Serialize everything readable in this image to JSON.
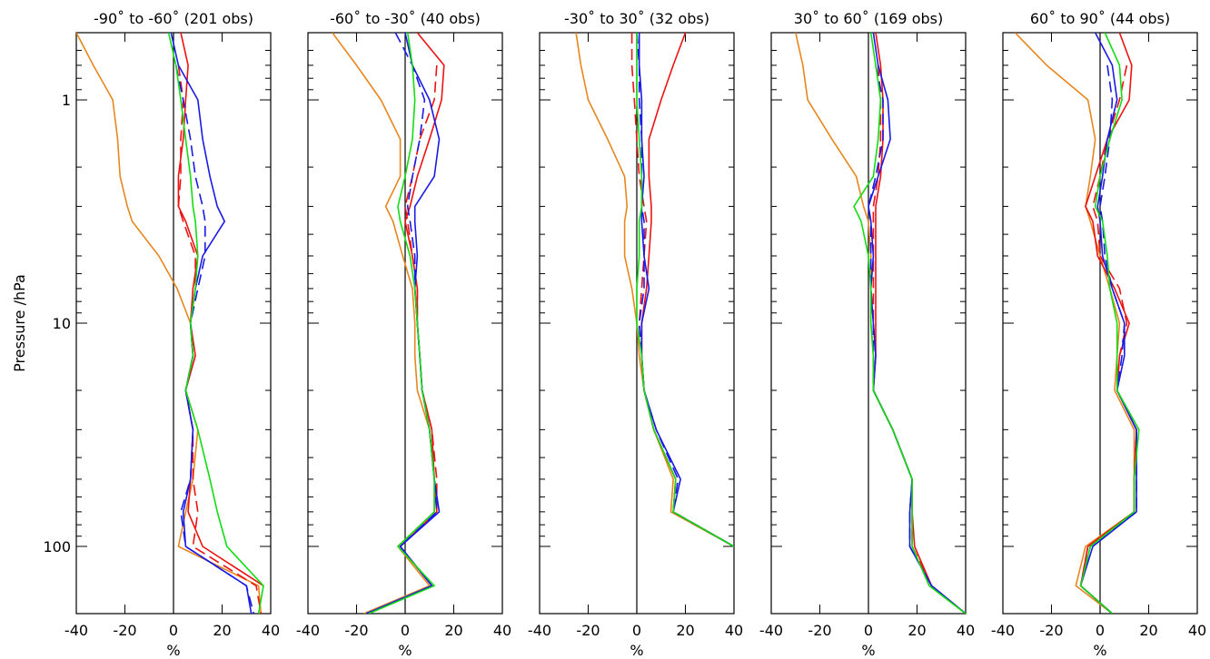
{
  "chart_data": [
    {
      "type": "line",
      "title": "-90˚ to -60˚ (201 obs)",
      "xlabel": "%",
      "ylabel": "Pressure /hPa",
      "xlim": [
        -40,
        40
      ],
      "xticks": [
        -40,
        -20,
        0,
        20,
        40
      ],
      "ylim": [
        200,
        0.5
      ],
      "yticks": [
        1,
        10,
        100
      ],
      "show_ytick_labels": true,
      "yminor": [
        0.6,
        0.7,
        0.8,
        0.9,
        2,
        3,
        4,
        5,
        6,
        7,
        8,
        9,
        20,
        30,
        40,
        50,
        60,
        70,
        80,
        90,
        200
      ],
      "log_y": true,
      "y": [
        0.5,
        0.7,
        1,
        1.5,
        2.2,
        3,
        3.5,
        5,
        7,
        10,
        14,
        20,
        30,
        50,
        70,
        100,
        150,
        200
      ],
      "series": [
        {
          "color": "#e8861e",
          "dashed": false,
          "values": [
            -40,
            -33,
            -25,
            -23,
            -22,
            -19,
            -17,
            -6,
            1.5,
            7,
            8,
            5,
            10,
            8,
            5,
            2,
            35,
            36
          ]
        },
        {
          "color": "#ee1111",
          "dashed": false,
          "values": [
            3,
            6,
            5,
            4,
            2,
            2,
            5,
            10,
            8,
            7,
            9,
            5,
            8,
            7,
            6,
            12,
            37,
            null
          ]
        },
        {
          "color": "#ee1111",
          "dashed": true,
          "values": [
            null,
            2,
            4,
            3,
            3,
            2,
            4,
            9,
            9,
            7,
            8,
            5,
            8,
            8,
            10,
            8,
            34,
            36
          ]
        },
        {
          "color": "#1a1ae6",
          "dashed": false,
          "values": [
            -1,
            2,
            10,
            12,
            15,
            18,
            21,
            12,
            9,
            7,
            8,
            5,
            8,
            7,
            4,
            5,
            30,
            32
          ]
        },
        {
          "color": "#1a1ae6",
          "dashed": true,
          "values": [
            null,
            1,
            4,
            7,
            9,
            12,
            13,
            13,
            10,
            7,
            8,
            5,
            8,
            7,
            3,
            5,
            30,
            33
          ]
        },
        {
          "color": "#11dd11",
          "dashed": false,
          "values": [
            -2,
            1,
            3,
            5,
            7,
            8,
            9,
            10,
            9,
            7,
            8,
            5,
            10,
            15,
            18,
            22,
            37,
            35
          ]
        }
      ]
    },
    {
      "type": "line",
      "title": "-60˚ to -30˚ (40 obs)",
      "xlabel": "%",
      "xlim": [
        -40,
        40
      ],
      "xticks": [
        -40,
        -20,
        0,
        20,
        40
      ],
      "ylim": [
        200,
        0.5
      ],
      "yticks": [
        1,
        10,
        100
      ],
      "show_ytick_labels": false,
      "yminor": [
        0.6,
        0.7,
        0.8,
        0.9,
        2,
        3,
        4,
        5,
        6,
        7,
        8,
        9,
        20,
        30,
        40,
        50,
        60,
        70,
        80,
        90,
        200
      ],
      "log_y": true,
      "y": [
        0.5,
        0.7,
        1,
        1.5,
        2.2,
        3,
        3.5,
        5,
        7,
        10,
        14,
        20,
        30,
        50,
        70,
        100,
        150,
        200
      ],
      "series": [
        {
          "color": "#e8861e",
          "dashed": false,
          "values": [
            -30,
            -20,
            -10,
            -2,
            -2,
            -8,
            -5,
            -1,
            3,
            4,
            4,
            5,
            10,
            12,
            12,
            -3,
            10,
            -17
          ]
        },
        {
          "color": "#ee1111",
          "dashed": false,
          "values": [
            5,
            16,
            15,
            10,
            5,
            2,
            0,
            3,
            5,
            5,
            6,
            7,
            11,
            12,
            13,
            -2,
            11,
            -15
          ]
        },
        {
          "color": "#ee1111",
          "dashed": true,
          "values": [
            null,
            13,
            12,
            6,
            3,
            0,
            1,
            3,
            5,
            5,
            6,
            7,
            11,
            13,
            13,
            -2,
            11,
            -15
          ]
        },
        {
          "color": "#1a1ae6",
          "dashed": false,
          "values": [
            0,
            3,
            10,
            14,
            12,
            4,
            4,
            5,
            4,
            5,
            6,
            7,
            10,
            12,
            14,
            -2,
            11,
            -16
          ]
        },
        {
          "color": "#1a1ae6",
          "dashed": true,
          "values": [
            -4,
            3,
            8,
            6,
            3,
            1,
            2,
            4,
            4,
            5,
            6,
            7,
            10,
            12,
            13,
            -2,
            11,
            -16
          ]
        },
        {
          "color": "#11dd11",
          "dashed": false,
          "values": [
            1,
            3,
            4,
            3,
            0,
            -3,
            -2,
            2,
            4,
            5,
            6,
            7,
            10,
            12,
            12,
            -3,
            12,
            -15
          ]
        }
      ]
    },
    {
      "type": "line",
      "title": "-30˚ to 30˚ (32 obs)",
      "xlabel": "%",
      "xlim": [
        -40,
        40
      ],
      "xticks": [
        -40,
        -20,
        0,
        20,
        40
      ],
      "ylim": [
        200,
        0.5
      ],
      "yticks": [
        1,
        10,
        100
      ],
      "show_ytick_labels": false,
      "yminor": [
        0.6,
        0.7,
        0.8,
        0.9,
        2,
        3,
        4,
        5,
        6,
        7,
        8,
        9,
        20,
        30,
        40,
        50,
        60,
        70,
        80,
        90,
        200
      ],
      "log_y": true,
      "y": [
        0.5,
        0.7,
        1,
        1.5,
        2.2,
        3,
        3.5,
        5,
        7,
        10,
        14,
        20,
        30,
        50,
        70,
        100,
        150,
        200
      ],
      "series": [
        {
          "color": "#e8861e",
          "dashed": false,
          "values": [
            -25,
            -23,
            -20,
            -12,
            -5,
            -4,
            -5,
            -5,
            -2,
            0,
            1,
            3,
            7,
            15,
            14,
            40,
            null,
            null
          ]
        },
        {
          "color": "#ee1111",
          "dashed": false,
          "values": [
            20,
            15,
            10,
            5,
            5,
            6,
            6,
            5,
            4,
            2,
            2,
            3,
            7,
            16,
            15,
            40,
            null,
            null
          ]
        },
        {
          "color": "#ee1111",
          "dashed": true,
          "values": [
            -2,
            -2,
            -1,
            0,
            1,
            3,
            4,
            3,
            2,
            1,
            2,
            3,
            7,
            16,
            15,
            40,
            null,
            null
          ]
        },
        {
          "color": "#1a1ae6",
          "dashed": false,
          "values": [
            1,
            1,
            2,
            2,
            3,
            2,
            2,
            3,
            5,
            2,
            2,
            3,
            8,
            18,
            15,
            40,
            null,
            null
          ]
        },
        {
          "color": "#1a1ae6",
          "dashed": true,
          "values": [
            0,
            1,
            1,
            2,
            2,
            2,
            3,
            3,
            3,
            1,
            2,
            3,
            8,
            17,
            15,
            40,
            null,
            null
          ]
        },
        {
          "color": "#11dd11",
          "dashed": false,
          "values": [
            0,
            0,
            0,
            1,
            2,
            2,
            1,
            1,
            0,
            0,
            2,
            3,
            7,
            16,
            15,
            40,
            null,
            null
          ]
        }
      ]
    },
    {
      "type": "line",
      "title": "30˚ to 60˚ (169 obs)",
      "xlabel": "%",
      "xlim": [
        -40,
        40
      ],
      "xticks": [
        -40,
        -20,
        0,
        20,
        40
      ],
      "ylim": [
        200,
        0.5
      ],
      "yticks": [
        1,
        10,
        100
      ],
      "show_ytick_labels": false,
      "yminor": [
        0.6,
        0.7,
        0.8,
        0.9,
        2,
        3,
        4,
        5,
        6,
        7,
        8,
        9,
        20,
        30,
        40,
        50,
        60,
        70,
        80,
        90,
        200
      ],
      "log_y": true,
      "y": [
        0.5,
        0.7,
        1,
        1.5,
        2.2,
        3,
        3.5,
        5,
        7,
        10,
        14,
        20,
        30,
        50,
        70,
        100,
        150,
        200
      ],
      "series": [
        {
          "color": "#e8861e",
          "dashed": false,
          "values": [
            -30,
            -27,
            -25,
            -15,
            -5,
            -2,
            0,
            1,
            1,
            1,
            2,
            2,
            10,
            18,
            18,
            18,
            25,
            40
          ]
        },
        {
          "color": "#ee1111",
          "dashed": false,
          "values": [
            3,
            5,
            6,
            6,
            5,
            3,
            3,
            3,
            3,
            3,
            3,
            2,
            10,
            18,
            18,
            19,
            26,
            40
          ]
        },
        {
          "color": "#ee1111",
          "dashed": true,
          "values": [
            null,
            4,
            5,
            5,
            4,
            2,
            2,
            2,
            2,
            2,
            3,
            2,
            10,
            18,
            18,
            18,
            26,
            40
          ]
        },
        {
          "color": "#1a1ae6",
          "dashed": false,
          "values": [
            2,
            4,
            8,
            9,
            4,
            0,
            1,
            2,
            1,
            2,
            3,
            2,
            10,
            18,
            17,
            17,
            26,
            40
          ]
        },
        {
          "color": "#1a1ae6",
          "dashed": true,
          "values": [
            null,
            3,
            6,
            6,
            3,
            0,
            1,
            1,
            1,
            2,
            2,
            2,
            10,
            18,
            17,
            17,
            26,
            40
          ]
        },
        {
          "color": "#11dd11",
          "dashed": false,
          "values": [
            1,
            3,
            5,
            4,
            2,
            -6,
            -3,
            0,
            1,
            1,
            2,
            2,
            10,
            18,
            18,
            18,
            25,
            40
          ]
        }
      ]
    },
    {
      "type": "line",
      "title": "60˚ to 90˚ (44 obs)",
      "xlabel": "%",
      "xlim": [
        -40,
        40
      ],
      "xticks": [
        -40,
        -20,
        0,
        20,
        40
      ],
      "ylim": [
        200,
        0.5
      ],
      "yticks": [
        1,
        10,
        100
      ],
      "show_ytick_labels": false,
      "yminor": [
        0.6,
        0.7,
        0.8,
        0.9,
        2,
        3,
        4,
        5,
        6,
        7,
        8,
        9,
        20,
        30,
        40,
        50,
        60,
        70,
        80,
        90,
        200
      ],
      "log_y": true,
      "y": [
        0.5,
        0.7,
        1,
        1.5,
        2.2,
        3,
        3.5,
        5,
        7,
        10,
        14,
        20,
        30,
        50,
        70,
        100,
        150,
        200
      ],
      "series": [
        {
          "color": "#e8861e",
          "dashed": false,
          "values": [
            -35,
            -22,
            -5,
            -2,
            -4,
            -6,
            -4,
            0,
            4,
            8,
            7,
            6,
            14,
            14,
            14,
            -6,
            -10,
            5
          ]
        },
        {
          "color": "#ee1111",
          "dashed": false,
          "values": [
            8,
            13,
            12,
            3,
            -2,
            -6,
            -3,
            -1,
            6,
            12,
            8,
            7,
            15,
            14,
            14,
            -5,
            -8,
            5
          ]
        },
        {
          "color": "#ee1111",
          "dashed": true,
          "values": [
            null,
            11,
            8,
            3,
            0,
            -3,
            -1,
            0,
            8,
            11,
            8,
            7,
            15,
            14,
            14,
            -5,
            -8,
            5
          ]
        },
        {
          "color": "#1a1ae6",
          "dashed": false,
          "values": [
            -2,
            5,
            7,
            3,
            1,
            -1,
            0,
            1,
            5,
            10,
            10,
            7,
            15,
            15,
            15,
            -3,
            -8,
            5
          ]
        },
        {
          "color": "#1a1ae6",
          "dashed": true,
          "values": [
            null,
            3,
            5,
            4,
            2,
            0,
            1,
            2,
            5,
            10,
            9,
            7,
            15,
            15,
            15,
            -4,
            -8,
            5
          ]
        },
        {
          "color": "#11dd11",
          "dashed": false,
          "values": [
            2,
            8,
            9,
            4,
            0,
            -2,
            1,
            3,
            4,
            7,
            7,
            7,
            16,
            14,
            14,
            -4,
            -8,
            5
          ]
        }
      ]
    }
  ]
}
